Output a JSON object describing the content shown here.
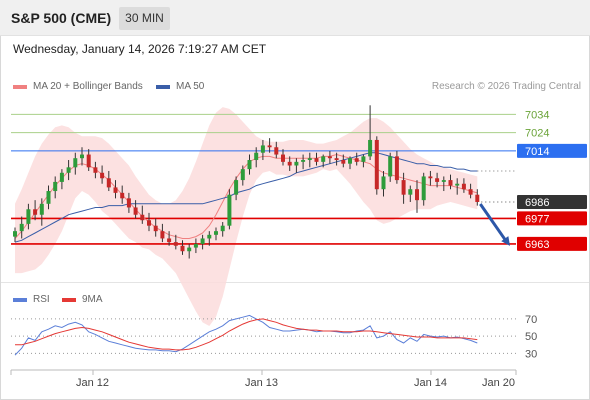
{
  "header": {
    "instrument": "S&P 500 (CME)",
    "interval": "30 MIN",
    "datetime": "Wednesday, January 14, 2026 7:19:27 AM CET"
  },
  "legend": {
    "ma20": "MA 20 + Bollinger Bands",
    "ma50": "MA 50",
    "credit": "Research © 2026 Trading Central",
    "rsi": "RSI",
    "rsi_ma": "9MA"
  },
  "colors": {
    "band_fill": "#fcdcdc",
    "ma20": "#f08080",
    "ma50": "#3a5ea8",
    "candle_up": "#2e9c3b",
    "candle_down": "#c62828",
    "green_level": "#a9d08a",
    "blue_level": "#2c6ff0",
    "red_level": "#e00000",
    "last_price": "#333333",
    "rsi_line": "#5b7fd8",
    "rsi_ma_line": "#e53935"
  },
  "chart_data": [
    {
      "type": "candlestick",
      "y_axis": "price",
      "ylim": [
        6952,
        7043
      ],
      "x_labels": [
        "Jan 12",
        "Jan 13",
        "Jan 14",
        "Jan 20"
      ],
      "levels": [
        {
          "label": "7034",
          "value": 7034,
          "kind": "green"
        },
        {
          "label": "7024",
          "value": 7024,
          "kind": "green"
        },
        {
          "label": "7014",
          "value": 7014,
          "kind": "blue"
        },
        {
          "label": "6986",
          "value": 6986,
          "kind": "last"
        },
        {
          "label": "6977",
          "value": 6977,
          "kind": "red"
        },
        {
          "label": "6963",
          "value": 6963,
          "kind": "red"
        }
      ],
      "candles": [
        [
          6967,
          6972,
          6964,
          6970
        ],
        [
          6970,
          6978,
          6966,
          6974
        ],
        [
          6974,
          6985,
          6971,
          6982
        ],
        [
          6982,
          6987,
          6976,
          6979
        ],
        [
          6979,
          6988,
          6973,
          6985
        ],
        [
          6985,
          6995,
          6982,
          6992
        ],
        [
          6992,
          7000,
          6988,
          6997
        ],
        [
          6997,
          7004,
          6993,
          7002
        ],
        [
          7002,
          7009,
          6998,
          7005
        ],
        [
          7005,
          7013,
          7001,
          7010
        ],
        [
          7010,
          7016,
          7006,
          7012
        ],
        [
          7012,
          7015,
          7003,
          7005
        ],
        [
          7005,
          7008,
          6999,
          7002
        ],
        [
          7002,
          7006,
          6996,
          6999
        ],
        [
          6999,
          7003,
          6992,
          6994
        ],
        [
          6994,
          6998,
          6988,
          6991
        ],
        [
          6991,
          6995,
          6985,
          6988
        ],
        [
          6988,
          6991,
          6980,
          6983
        ],
        [
          6983,
          6987,
          6977,
          6979
        ],
        [
          6979,
          6984,
          6974,
          6976
        ],
        [
          6976,
          6980,
          6970,
          6973
        ],
        [
          6973,
          6977,
          6967,
          6970
        ],
        [
          6970,
          6974,
          6964,
          6966
        ],
        [
          6966,
          6970,
          6962,
          6964
        ],
        [
          6964,
          6968,
          6960,
          6962
        ],
        [
          6962,
          6965,
          6957,
          6959
        ],
        [
          6959,
          6963,
          6955,
          6961
        ],
        [
          6961,
          6966,
          6958,
          6963
        ],
        [
          6963,
          6968,
          6960,
          6966
        ],
        [
          6966,
          6970,
          6962,
          6968
        ],
        [
          6968,
          6972,
          6965,
          6970
        ],
        [
          6970,
          6975,
          6967,
          6973
        ],
        [
          6973,
          6993,
          6971,
          6990
        ],
        [
          6990,
          7000,
          6987,
          6998
        ],
        [
          6998,
          7006,
          6995,
          7004
        ],
        [
          7004,
          7012,
          7001,
          7009
        ],
        [
          7009,
          7016,
          7005,
          7013
        ],
        [
          7013,
          7020,
          7009,
          7017
        ],
        [
          7017,
          7021,
          7013,
          7016
        ],
        [
          7016,
          7019,
          7010,
          7012
        ],
        [
          7012,
          7015,
          7006,
          7008
        ],
        [
          7008,
          7011,
          7003,
          7006
        ],
        [
          7006,
          7010,
          7002,
          7008
        ],
        [
          7008,
          7012,
          7004,
          7009
        ],
        [
          7009,
          7013,
          7005,
          7010
        ],
        [
          7010,
          7013,
          7006,
          7008
        ],
        [
          7008,
          7012,
          7005,
          7011
        ],
        [
          7011,
          7014,
          7007,
          7010
        ],
        [
          7010,
          7013,
          7006,
          7009
        ],
        [
          7009,
          7012,
          7005,
          7007
        ],
        [
          7007,
          7011,
          7004,
          7010
        ],
        [
          7010,
          7013,
          7006,
          7008
        ],
        [
          7008,
          7012,
          7005,
          7011
        ],
        [
          7011,
          7039,
          7009,
          7020
        ],
        [
          7020,
          7022,
          6990,
          6993
        ],
        [
          6993,
          7003,
          6989,
          7000
        ],
        [
          7000,
          7013,
          6997,
          7011
        ],
        [
          7011,
          7014,
          6996,
          6998
        ],
        [
          6998,
          7002,
          6985,
          6990
        ],
        [
          6990,
          6995,
          6986,
          6993
        ],
        [
          6993,
          6998,
          6980,
          6987
        ],
        [
          6987,
          7002,
          6984,
          7000
        ],
        [
          7000,
          7003,
          6995,
          6999
        ],
        [
          6999,
          7002,
          6994,
          6997
        ],
        [
          6997,
          7000,
          6992,
          6998
        ],
        [
          6998,
          7001,
          6993,
          6995
        ],
        [
          6995,
          6999,
          6990,
          6996
        ],
        [
          6996,
          6999,
          6991,
          6993
        ],
        [
          6993,
          6996,
          6988,
          6990
        ],
        [
          6990,
          6993,
          6984,
          6986
        ]
      ],
      "ma20": [
        6966,
        6970,
        6975,
        6980,
        6985,
        6990,
        6995,
        6999,
        7003,
        7006,
        7007,
        7006,
        7004,
        7001,
        6998,
        6994,
        6990,
        6986,
        6982,
        6978,
        6975,
        6972,
        6970,
        6968,
        6967,
        6966,
        6966,
        6967,
        6969,
        6973,
        6979,
        6986,
        6993,
        6999,
        7004,
        7008,
        7010,
        7011,
        7011,
        7010,
        7010,
        7010,
        7010,
        7010,
        7010,
        7010,
        7011,
        7011,
        7012,
        7011,
        7010,
        7009,
        7008,
        7007,
        7004,
        7002,
        7001,
        7000,
        6999,
        6998,
        6997,
        6996,
        6995,
        6995,
        6995,
        6995,
        6994,
        6993,
        6992,
        6991
      ],
      "bb_upper": [
        6985,
        6993,
        7002,
        7011,
        7018,
        7023,
        7027,
        7028,
        7027,
        7024,
        7022,
        7022,
        7022,
        7021,
        7018,
        7014,
        7010,
        7006,
        7000,
        6995,
        6990,
        6987,
        6985,
        6985,
        6987,
        6992,
        6999,
        7008,
        7018,
        7028,
        7035,
        7038,
        7037,
        7034,
        7030,
        7026,
        7022,
        7020,
        7019,
        7019,
        7019,
        7020,
        7020,
        7020,
        7019,
        7018,
        7018,
        7019,
        7020,
        7022,
        7024,
        7027,
        7030,
        7032,
        7032,
        7030,
        7027,
        7023,
        7019,
        7015,
        7012,
        7010,
        7008,
        7006,
        7005,
        7004,
        7003,
        7002,
        7001,
        7000
      ],
      "bb_lower": [
        6947,
        6947,
        6948,
        6949,
        6952,
        6957,
        6963,
        6970,
        6979,
        6988,
        6992,
        6990,
        6986,
        6981,
        6978,
        6974,
        6970,
        6966,
        6964,
        6961,
        6960,
        6957,
        6955,
        6951,
        6947,
        6940,
        6933,
        6926,
        6920,
        6918,
        6923,
        6934,
        6949,
        6964,
        6978,
        6990,
        6998,
        7002,
        7003,
        7001,
        7001,
        7000,
        7000,
        7000,
        7001,
        7002,
        7004,
        7003,
        7004,
        7000,
        6996,
        6991,
        6986,
        6982,
        6976,
        6974,
        6975,
        6977,
        6979,
        6981,
        6982,
        6982,
        6982,
        6984,
        6985,
        6986,
        6985,
        6984,
        6983,
        6982
      ],
      "ma50": [
        6964,
        6965,
        6967,
        6969,
        6971,
        6973,
        6975,
        6977,
        6979,
        6980,
        6981,
        6982,
        6983,
        6983,
        6984,
        6984,
        6984,
        6985,
        6985,
        6985,
        6985,
        6985,
        6985,
        6985,
        6985,
        6985,
        6985,
        6985,
        6985,
        6986,
        6987,
        6988,
        6989,
        6991,
        6992,
        6993,
        6995,
        6996,
        6997,
        6998,
        6999,
        7000,
        7002,
        7003,
        7004,
        7005,
        7006,
        7007,
        7008,
        7009,
        7010,
        7011,
        7012,
        7013,
        7013,
        7012,
        7011,
        7010,
        7009,
        7008,
        7007,
        7007,
        7006,
        7006,
        7005,
        7005,
        7004,
        7004,
        7003,
        7003
      ]
    },
    {
      "type": "line",
      "y_axis": "RSI",
      "ylim": [
        20,
        78
      ],
      "yticks": [
        "70",
        "50",
        "30"
      ],
      "series": [
        {
          "name": "RSI",
          "values": [
            28,
            36,
            48,
            45,
            55,
            58,
            62,
            60,
            64,
            66,
            63,
            55,
            52,
            48,
            44,
            42,
            40,
            38,
            36,
            35,
            34,
            34,
            33,
            33,
            32,
            35,
            40,
            45,
            50,
            55,
            58,
            62,
            68,
            70,
            72,
            74,
            70,
            66,
            60,
            58,
            56,
            56,
            57,
            58,
            57,
            55,
            56,
            56,
            55,
            54,
            54,
            56,
            57,
            62,
            48,
            50,
            55,
            46,
            42,
            48,
            44,
            52,
            50,
            49,
            50,
            48,
            49,
            47,
            45,
            42
          ]
        },
        {
          "name": "9MA",
          "values": [
            40,
            40,
            42,
            44,
            47,
            50,
            53,
            55,
            57,
            59,
            60,
            59,
            57,
            55,
            52,
            49,
            46,
            43,
            41,
            39,
            37,
            36,
            35,
            35,
            34,
            34,
            35,
            37,
            40,
            43,
            47,
            51,
            56,
            60,
            64,
            67,
            69,
            70,
            68,
            66,
            63,
            61,
            59,
            58,
            57,
            57,
            56,
            56,
            56,
            55,
            55,
            55,
            56,
            56,
            55,
            54,
            53,
            52,
            51,
            50,
            49,
            49,
            49,
            48,
            48,
            48,
            48,
            48,
            47,
            46
          ]
        }
      ]
    }
  ]
}
